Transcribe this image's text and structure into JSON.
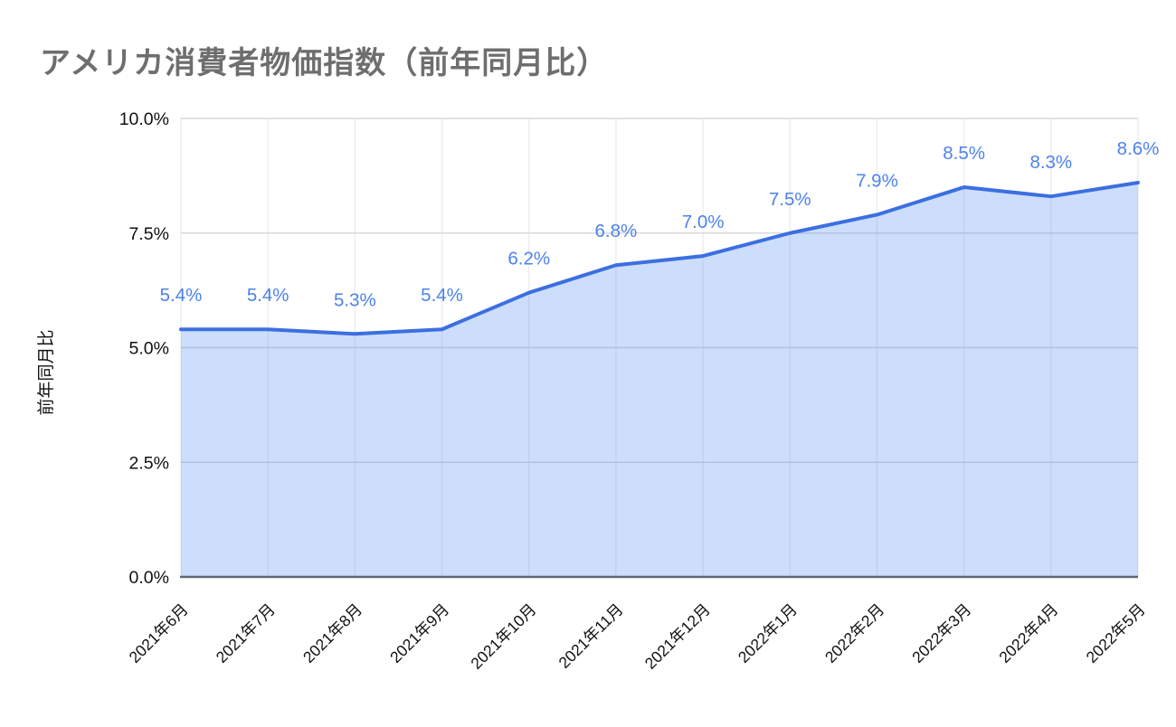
{
  "title": "アメリカ消費者物価指数（前年同月比）",
  "chart_data": {
    "type": "area",
    "title": "アメリカ消費者物価指数（前年同月比）",
    "xlabel": "",
    "ylabel": "前年同月比",
    "categories": [
      "2021年6月",
      "2021年7月",
      "2021年8月",
      "2021年9月",
      "2021年10月",
      "2021年11月",
      "2021年12月",
      "2022年1月",
      "2022年2月",
      "2022年3月",
      "2022年4月",
      "2022年5月"
    ],
    "values": [
      5.4,
      5.4,
      5.3,
      5.4,
      6.2,
      6.8,
      7.0,
      7.5,
      7.9,
      8.5,
      8.3,
      8.6
    ],
    "labels": [
      "5.4%",
      "5.4%",
      "5.3%",
      "5.4%",
      "6.2%",
      "6.8%",
      "7.0%",
      "7.5%",
      "7.9%",
      "8.5%",
      "8.3%",
      "8.6%"
    ],
    "ylim": [
      0,
      10
    ],
    "yticks": [
      {
        "value": 10,
        "label": "10.0%"
      },
      {
        "value": 7.5,
        "label": "7.5%"
      },
      {
        "value": 5,
        "label": "5.0%"
      },
      {
        "value": 2.5,
        "label": "2.5%"
      },
      {
        "value": 0,
        "label": "0.0%"
      }
    ],
    "grid": true,
    "legend": "none",
    "colors": {
      "line": "#3c6fe0",
      "fill": "rgba(66,133,244,0.27)",
      "label": "#4d82ec",
      "h_grid": "#d9d9d9",
      "v_grid": "#ededed",
      "axis": "#5f6673",
      "title": "#6e6e6e",
      "tick": "#111111"
    }
  }
}
